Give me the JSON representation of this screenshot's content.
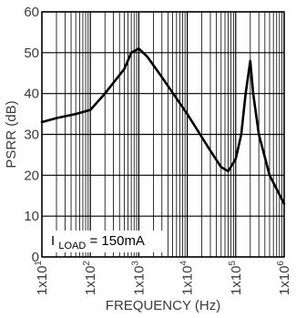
{
  "chart_data": {
    "type": "line",
    "xlabel": "FREQUENCY (Hz)",
    "ylabel": "PSRR (dB)",
    "x_scale": "log",
    "xlim": [
      10,
      1000000
    ],
    "ylim": [
      0,
      60
    ],
    "grid": true,
    "x_tick_labels": [
      {
        "base": "1x10",
        "exp": "1"
      },
      {
        "base": "1x10",
        "exp": "2"
      },
      {
        "base": "1x10",
        "exp": "3"
      },
      {
        "base": "1x10",
        "exp": "4"
      },
      {
        "base": "1x10",
        "exp": "5"
      },
      {
        "base": "1x10",
        "exp": "6"
      }
    ],
    "y_ticks": [
      0,
      10,
      20,
      30,
      40,
      50,
      60
    ],
    "annotation": {
      "prefix": "I",
      "subscript": "LOAD",
      "suffix": " = 150mA"
    },
    "series": [
      {
        "x": [
          10,
          20,
          50,
          100,
          200,
          500,
          700,
          1000,
          1500,
          3000,
          10000,
          30000,
          50000,
          70000,
          100000,
          130000,
          160000,
          200000,
          230000,
          300000,
          500000,
          1000000
        ],
        "y": [
          33,
          34,
          35,
          36,
          40,
          46,
          50,
          51,
          49,
          44,
          35,
          26,
          22,
          21,
          24,
          30,
          40,
          48,
          40,
          30,
          20,
          13
        ],
        "color": "#000000"
      }
    ]
  }
}
